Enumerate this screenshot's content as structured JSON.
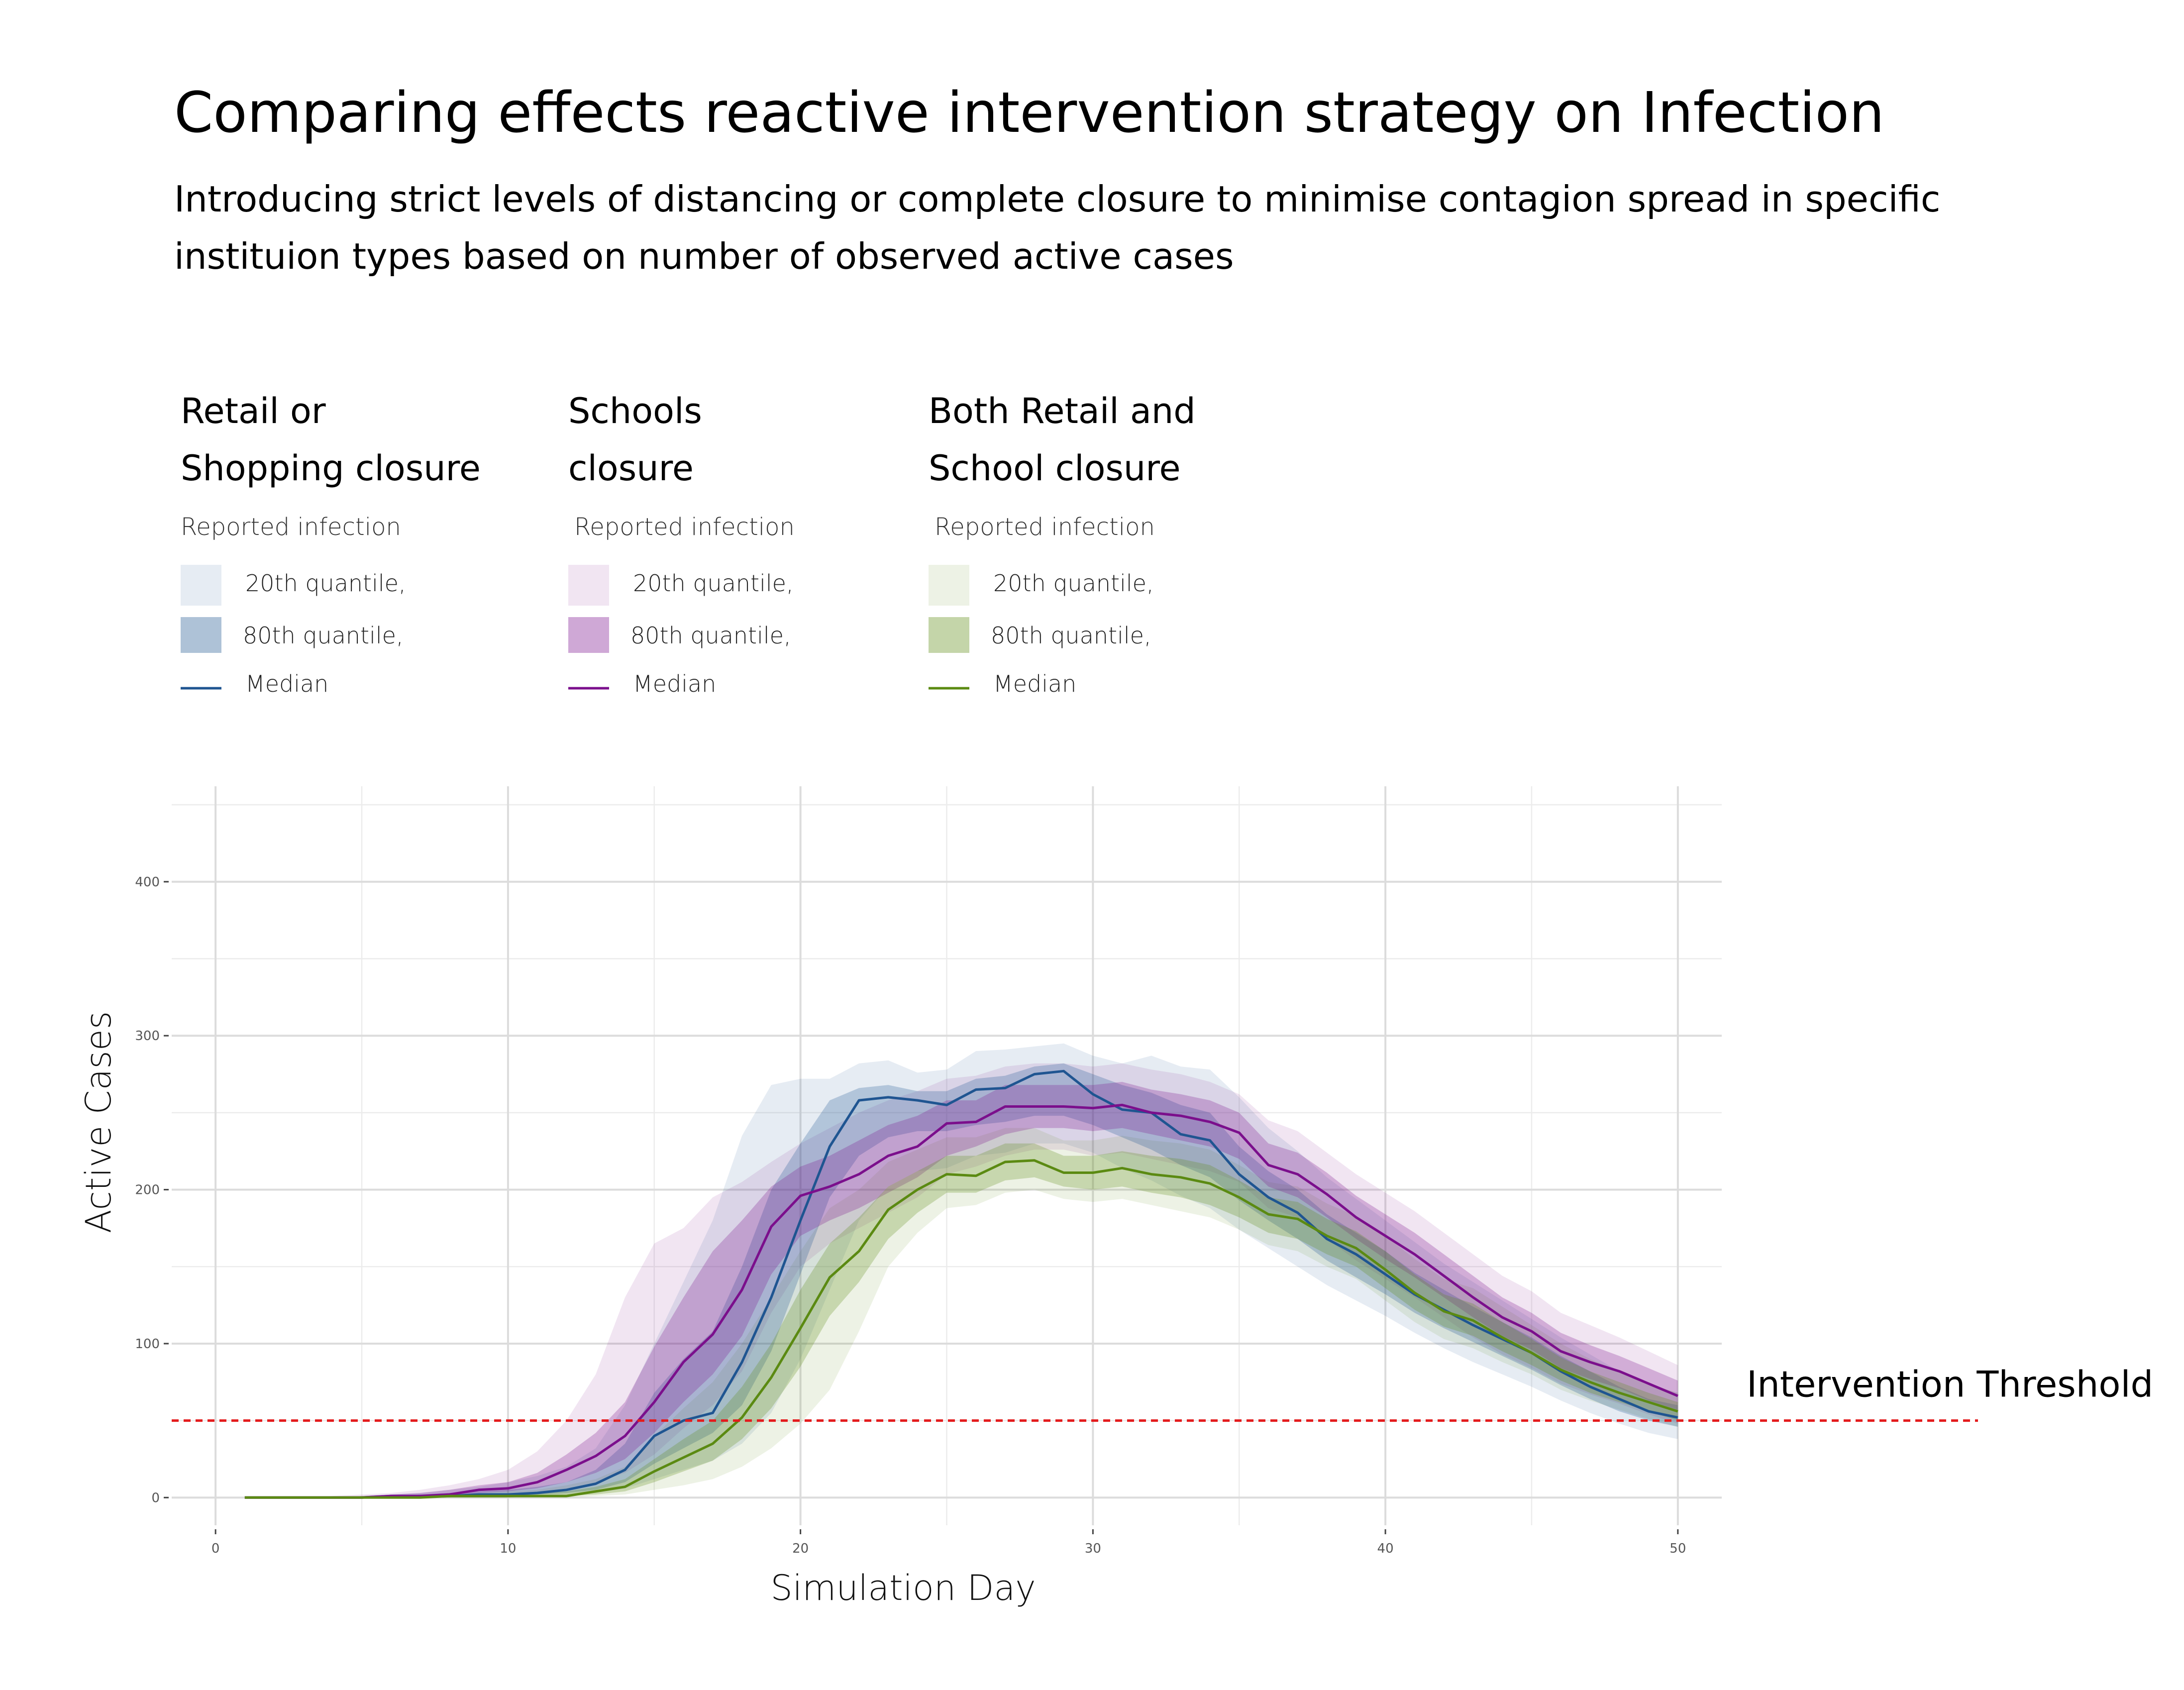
{
  "chart_data": {
    "type": "line",
    "title": "Comparing effects reactive intervention strategy on Infection",
    "subtitle_lines": [
      "Introducing strict levels of distancing or complete closure to minimise contagion spread in specific",
      "instituion types based on number of observed active cases"
    ],
    "xlabel": "Simulation Day",
    "ylabel": "Active Cases",
    "xlim": [
      -1.5,
      58
    ],
    "ylim": [
      -18,
      462
    ],
    "x_ticks": [
      0,
      10,
      20,
      30,
      40,
      50
    ],
    "y_ticks": [
      0,
      100,
      200,
      300,
      400
    ],
    "x_tick_labels": [
      "0",
      "10",
      "20",
      "30",
      "40",
      "50"
    ],
    "y_tick_labels": [
      "0",
      "100",
      "200",
      "300",
      "400"
    ],
    "grid": true,
    "threshold": {
      "value": 50,
      "label": "Intervention Threshold",
      "color": "#e41a1c"
    },
    "legend_subtitle": "Reported infection",
    "legend_items": [
      "20th quantile,",
      "80th quantile,",
      "Median"
    ],
    "series": [
      {
        "name": "Retail or Shopping closure",
        "legend_lines": [
          "Retail or",
          "Shopping closure"
        ],
        "color": "#1f5591",
        "x": [
          1,
          2,
          3,
          4,
          5,
          6,
          7,
          8,
          9,
          10,
          11,
          12,
          13,
          14,
          15,
          16,
          17,
          18,
          19,
          20,
          21,
          22,
          23,
          24,
          25,
          26,
          27,
          28,
          29,
          30,
          31,
          32,
          33,
          34,
          35,
          36,
          37,
          38,
          39,
          40,
          41,
          42,
          43,
          44,
          45,
          46,
          47,
          48,
          49,
          50
        ],
        "median": [
          0,
          0,
          0,
          0,
          0,
          1,
          1,
          1,
          2,
          2,
          3,
          5,
          9,
          18,
          40,
          50,
          55,
          88,
          130,
          180,
          228,
          258,
          260,
          258,
          255,
          265,
          266,
          275,
          277,
          262,
          252,
          250,
          236,
          232,
          210,
          195,
          185,
          168,
          158,
          145,
          132,
          122,
          112,
          103,
          94,
          82,
          72,
          64,
          56,
          52
        ],
        "inner_low": [
          0,
          0,
          0,
          0,
          0,
          0,
          0,
          1,
          1,
          1,
          2,
          3,
          5,
          10,
          22,
          32,
          42,
          60,
          95,
          145,
          195,
          222,
          234,
          238,
          238,
          242,
          244,
          248,
          248,
          242,
          234,
          226,
          216,
          208,
          193,
          180,
          168,
          154,
          143,
          132,
          120,
          110,
          101,
          92,
          83,
          73,
          64,
          56,
          50,
          46
        ],
        "inner_high": [
          0,
          0,
          0,
          0,
          0,
          1,
          2,
          3,
          4,
          5,
          7,
          10,
          18,
          35,
          68,
          90,
          108,
          150,
          200,
          230,
          258,
          266,
          268,
          264,
          264,
          272,
          274,
          280,
          282,
          275,
          268,
          263,
          255,
          250,
          228,
          212,
          200,
          184,
          172,
          160,
          146,
          135,
          124,
          114,
          104,
          92,
          82,
          72,
          64,
          60
        ],
        "outer_low": [
          0,
          0,
          0,
          0,
          0,
          0,
          0,
          0,
          0,
          0,
          1,
          2,
          3,
          6,
          12,
          18,
          24,
          35,
          55,
          90,
          135,
          180,
          202,
          212,
          214,
          222,
          224,
          230,
          230,
          224,
          214,
          206,
          196,
          188,
          174,
          162,
          150,
          138,
          128,
          118,
          107,
          97,
          88,
          80,
          72,
          63,
          55,
          48,
          42,
          38
        ],
        "outer_high": [
          0,
          0,
          0,
          0,
          1,
          2,
          3,
          5,
          7,
          10,
          14,
          20,
          32,
          60,
          100,
          140,
          180,
          235,
          268,
          272,
          272,
          282,
          284,
          276,
          278,
          290,
          291,
          293,
          295,
          287,
          282,
          287,
          280,
          278,
          260,
          240,
          225,
          208,
          194,
          180,
          166,
          152,
          140,
          128,
          116,
          104,
          93,
          82,
          73,
          68
        ]
      },
      {
        "name": "Schools closure",
        "legend_lines": [
          "Schools",
          "closure"
        ],
        "color": "#7b0f8c",
        "x": [
          1,
          2,
          3,
          4,
          5,
          6,
          7,
          8,
          9,
          10,
          11,
          12,
          13,
          14,
          15,
          16,
          17,
          18,
          19,
          20,
          21,
          22,
          23,
          24,
          25,
          26,
          27,
          28,
          29,
          30,
          31,
          32,
          33,
          34,
          35,
          36,
          37,
          38,
          39,
          40,
          41,
          42,
          43,
          44,
          45,
          46,
          47,
          48,
          49,
          50
        ],
        "median": [
          0,
          0,
          0,
          0,
          0,
          1,
          1,
          2,
          5,
          6,
          10,
          18,
          27,
          40,
          62,
          88,
          106,
          135,
          176,
          196,
          202,
          210,
          222,
          228,
          243,
          244,
          254,
          254,
          254,
          253,
          255,
          250,
          248,
          244,
          237,
          216,
          210,
          197,
          182,
          170,
          158,
          144,
          130,
          117,
          108,
          95,
          88,
          82,
          74,
          66
        ],
        "inner_low": [
          0,
          0,
          0,
          0,
          0,
          0,
          1,
          1,
          3,
          4,
          6,
          10,
          16,
          25,
          42,
          62,
          80,
          105,
          145,
          170,
          180,
          188,
          198,
          208,
          222,
          228,
          236,
          240,
          240,
          238,
          240,
          236,
          232,
          228,
          220,
          202,
          195,
          182,
          168,
          155,
          143,
          130,
          117,
          105,
          96,
          84,
          77,
          71,
          63,
          57
        ],
        "inner_high": [
          0,
          0,
          0,
          0,
          1,
          2,
          3,
          5,
          8,
          10,
          16,
          28,
          42,
          62,
          98,
          130,
          160,
          180,
          202,
          215,
          222,
          232,
          242,
          248,
          258,
          258,
          268,
          268,
          268,
          268,
          270,
          265,
          262,
          258,
          250,
          230,
          224,
          211,
          196,
          184,
          172,
          158,
          144,
          130,
          120,
          107,
          99,
          92,
          84,
          76
        ],
        "outer_low": [
          0,
          0,
          0,
          0,
          0,
          0,
          0,
          1,
          1,
          2,
          3,
          6,
          10,
          16,
          28,
          45,
          60,
          82,
          120,
          150,
          165,
          175,
          185,
          195,
          210,
          215,
          222,
          226,
          226,
          222,
          224,
          220,
          216,
          212,
          205,
          188,
          182,
          168,
          154,
          142,
          130,
          117,
          104,
          93,
          84,
          74,
          67,
          61,
          54,
          48
        ],
        "outer_high": [
          0,
          0,
          0,
          1,
          2,
          3,
          5,
          8,
          12,
          18,
          30,
          50,
          80,
          130,
          165,
          175,
          195,
          205,
          218,
          230,
          240,
          250,
          258,
          264,
          272,
          274,
          280,
          282,
          282,
          280,
          282,
          278,
          275,
          270,
          262,
          245,
          238,
          224,
          210,
          198,
          186,
          172,
          158,
          144,
          134,
          120,
          112,
          104,
          95,
          86
        ]
      },
      {
        "name": "Both Retail and School closure",
        "legend_lines": [
          "Both Retail and",
          "School closure"
        ],
        "color": "#5b8a12",
        "x": [
          1,
          2,
          3,
          4,
          5,
          6,
          7,
          8,
          9,
          10,
          11,
          12,
          13,
          14,
          15,
          16,
          17,
          18,
          19,
          20,
          21,
          22,
          23,
          24,
          25,
          26,
          27,
          28,
          29,
          30,
          31,
          32,
          33,
          34,
          35,
          36,
          37,
          38,
          39,
          40,
          41,
          42,
          43,
          44,
          45,
          46,
          47,
          48,
          49,
          50
        ],
        "median": [
          0,
          0,
          0,
          0,
          0,
          0,
          0,
          1,
          1,
          1,
          1,
          1,
          4,
          7,
          17,
          26,
          35,
          52,
          78,
          110,
          143,
          160,
          187,
          200,
          210,
          209,
          218,
          219,
          211,
          211,
          214,
          210,
          208,
          204,
          195,
          184,
          181,
          170,
          162,
          148,
          133,
          121,
          115,
          104,
          94,
          83,
          75,
          68,
          62,
          56
        ],
        "inner_low": [
          0,
          0,
          0,
          0,
          0,
          0,
          0,
          0,
          0,
          0,
          1,
          1,
          2,
          4,
          10,
          17,
          24,
          38,
          58,
          85,
          118,
          140,
          168,
          185,
          198,
          198,
          206,
          208,
          202,
          200,
          202,
          198,
          195,
          190,
          182,
          172,
          168,
          158,
          150,
          136,
          122,
          111,
          105,
          95,
          86,
          76,
          68,
          62,
          56,
          50
        ],
        "inner_high": [
          0,
          0,
          0,
          0,
          0,
          1,
          1,
          1,
          2,
          2,
          3,
          4,
          7,
          12,
          25,
          38,
          50,
          72,
          100,
          135,
          165,
          182,
          202,
          212,
          222,
          222,
          230,
          230,
          222,
          222,
          225,
          222,
          220,
          216,
          206,
          195,
          192,
          181,
          173,
          160,
          145,
          132,
          126,
          114,
          103,
          91,
          82,
          75,
          68,
          62
        ],
        "outer_low": [
          0,
          0,
          0,
          0,
          0,
          0,
          0,
          0,
          0,
          0,
          0,
          0,
          1,
          2,
          5,
          8,
          12,
          20,
          32,
          48,
          70,
          108,
          150,
          172,
          188,
          190,
          198,
          200,
          194,
          192,
          194,
          190,
          186,
          182,
          174,
          164,
          160,
          150,
          142,
          128,
          114,
          103,
          97,
          88,
          80,
          70,
          63,
          57,
          51,
          46
        ],
        "outer_high": [
          0,
          0,
          0,
          0,
          0,
          1,
          1,
          2,
          3,
          4,
          5,
          8,
          12,
          20,
          40,
          58,
          75,
          100,
          130,
          160,
          188,
          200,
          218,
          226,
          234,
          234,
          240,
          240,
          232,
          232,
          235,
          232,
          230,
          226,
          216,
          205,
          202,
          191,
          183,
          170,
          155,
          142,
          136,
          124,
          112,
          100,
          90,
          82,
          74,
          68
        ]
      }
    ]
  }
}
